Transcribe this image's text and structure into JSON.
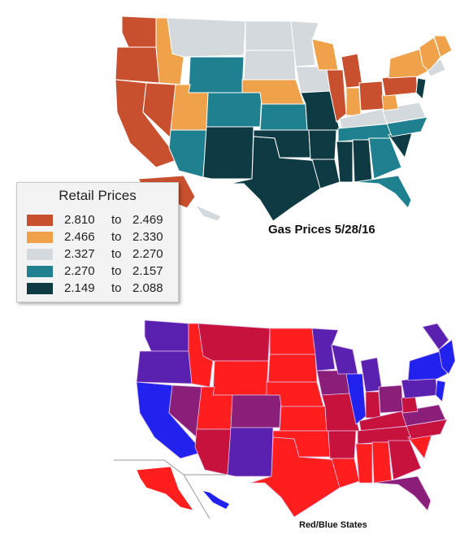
{
  "legend": {
    "title": "Retail Prices",
    "ranges": [
      {
        "from": "2.810",
        "to_word": "to",
        "to": "2.469",
        "color": "#c8502f"
      },
      {
        "from": "2.466",
        "to_word": "to",
        "to": "2.330",
        "color": "#f0a24a"
      },
      {
        "from": "2.327",
        "to_word": "to",
        "to": "2.270",
        "color": "#d3d9dc"
      },
      {
        "from": "2.270",
        "to_word": "to",
        "to": "2.157",
        "color": "#1f8090"
      },
      {
        "from": "2.149",
        "to_word": "to",
        "to": "2.088",
        "color": "#0e3a44"
      }
    ]
  },
  "gas_caption": "Gas Prices 5/28/16",
  "pol_caption": "Red/Blue States",
  "political_colors": {
    "red": "#ff1e1e",
    "red_purple": "#c8123e",
    "purple": "#8a1e78",
    "blue_purple": "#5a20b0",
    "blue": "#2222ee"
  }
}
